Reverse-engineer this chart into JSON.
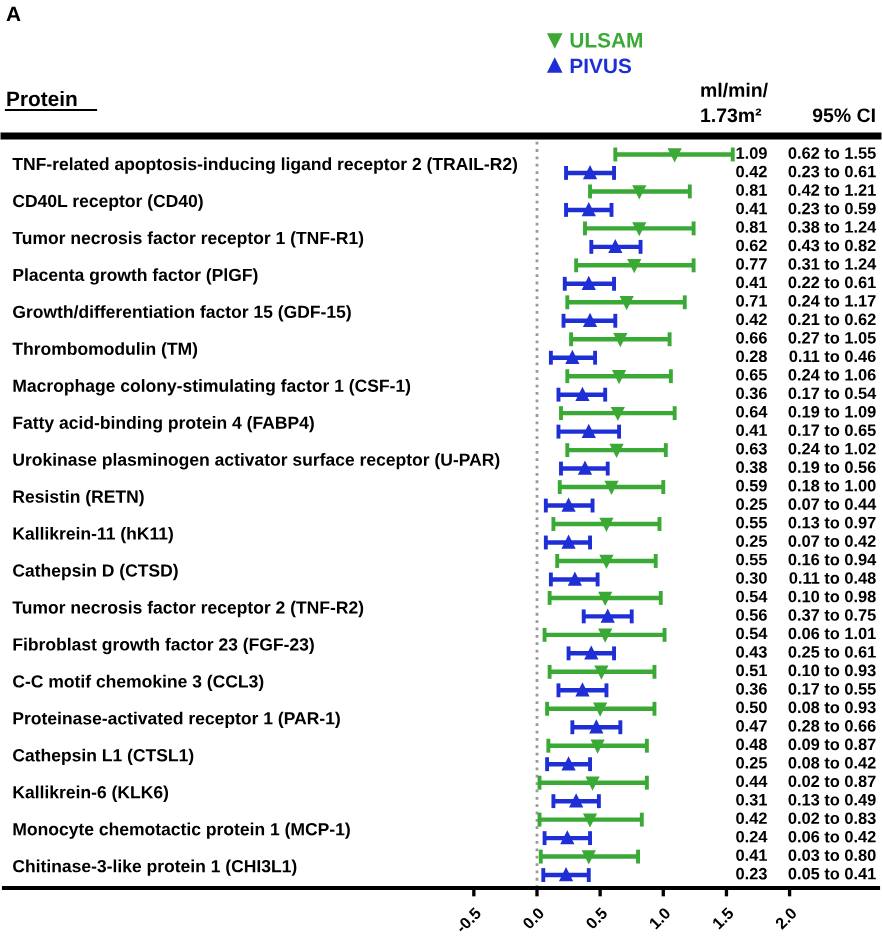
{
  "chart_data": {
    "type": "scatter",
    "orientation": "horizontal",
    "title": "A",
    "ylabel": "Protein",
    "annotations": [
      "ml/min/\n1.73m²",
      "95% CI"
    ],
    "categories": [
      "TNF-related apoptosis-inducing ligand receptor 2 (TRAIL-R2)",
      "CD40L receptor (CD40)",
      "Tumor necrosis factor receptor 1 (TNF-R1)",
      "Placenta growth factor (PlGF)",
      "Growth/differentiation factor 15 (GDF-15)",
      "Thrombomodulin (TM)",
      "Macrophage colony-stimulating factor 1 (CSF-1)",
      "Fatty acid-binding protein 4 (FABP4)",
      "Urokinase plasminogen activator surface receptor (U-PAR)",
      "Resistin (RETN)",
      "Kallikrein-11 (hK11)",
      "Cathepsin D (CTSD)",
      "Tumor necrosis factor receptor 2 (TNF-R2)",
      "Fibroblast growth factor 23 (FGF-23)",
      "C-C motif chemokine 3 (CCL3)",
      "Proteinase-activated receptor 1 (PAR-1)",
      "Cathepsin L1 (CTSL1)",
      "Kallikrein-6 (KLK6)",
      "Monocyte chemotactic protein 1 (MCP-1)",
      "Chitinase-3-like protein 1 (CHI3L1)"
    ],
    "series": [
      {
        "name": "ULSAM",
        "color": "#3aa935",
        "marker": "triangle_down",
        "values": [
          1.09,
          0.81,
          0.81,
          0.77,
          0.71,
          0.66,
          0.65,
          0.64,
          0.63,
          0.59,
          0.55,
          0.55,
          0.54,
          0.54,
          0.51,
          0.5,
          0.48,
          0.44,
          0.42,
          0.41
        ],
        "errors": [
          [
            0.62,
            1.55
          ],
          [
            0.42,
            1.21
          ],
          [
            0.38,
            1.24
          ],
          [
            0.31,
            1.24
          ],
          [
            0.24,
            1.17
          ],
          [
            0.27,
            1.05
          ],
          [
            0.24,
            1.06
          ],
          [
            0.19,
            1.09
          ],
          [
            0.24,
            1.02
          ],
          [
            0.18,
            1.0
          ],
          [
            0.13,
            0.97
          ],
          [
            0.16,
            0.94
          ],
          [
            0.1,
            0.98
          ],
          [
            0.06,
            1.01
          ],
          [
            0.1,
            0.93
          ],
          [
            0.08,
            0.93
          ],
          [
            0.09,
            0.87
          ],
          [
            0.02,
            0.87
          ],
          [
            0.02,
            0.83
          ],
          [
            0.03,
            0.8
          ]
        ],
        "value_labels": [
          "1.09 0.62 to 1.55",
          "0.81 0.42 to 1.21",
          "0.81 0.38 to 1.24",
          "0.77 0.31 to 1.24",
          "0.71 0.24 to 1.17",
          "0.66 0.27 to 1.05",
          "0.65 0.24 to 1.06",
          "0.64 0.19 to 1.09",
          "0.63 0.24 to 1.02",
          "0.59 0.18 to 1.00",
          "0.55 0.13 to 0.97",
          "0.55 0.16 to 0.94",
          "0.54 0.10 to 0.98",
          "0.54 0.06 to 1.01",
          "0.51 0.10 to 0.93",
          "0.50 0.08 to 0.93",
          "0.48 0.09 to 0.87",
          "0.44 0.02 to 0.87",
          "0.42 0.02 to 0.83",
          "0.41 0.03 to 0.80"
        ]
      },
      {
        "name": "PIVUS",
        "color": "#1f2fd6",
        "marker": "triangle",
        "values": [
          0.42,
          0.41,
          0.62,
          0.41,
          0.42,
          0.28,
          0.36,
          0.41,
          0.38,
          0.25,
          0.25,
          0.3,
          0.56,
          0.43,
          0.36,
          0.47,
          0.25,
          0.31,
          0.24,
          0.23
        ],
        "errors": [
          [
            0.23,
            0.61
          ],
          [
            0.23,
            0.59
          ],
          [
            0.43,
            0.82
          ],
          [
            0.22,
            0.61
          ],
          [
            0.21,
            0.62
          ],
          [
            0.11,
            0.46
          ],
          [
            0.17,
            0.54
          ],
          [
            0.17,
            0.65
          ],
          [
            0.19,
            0.56
          ],
          [
            0.07,
            0.44
          ],
          [
            0.07,
            0.42
          ],
          [
            0.11,
            0.48
          ],
          [
            0.37,
            0.75
          ],
          [
            0.25,
            0.61
          ],
          [
            0.17,
            0.55
          ],
          [
            0.28,
            0.66
          ],
          [
            0.08,
            0.42
          ],
          [
            0.13,
            0.49
          ],
          [
            0.06,
            0.42
          ],
          [
            0.05,
            0.41
          ]
        ],
        "value_labels": [
          "0.42 0.23 to 0.61",
          "0.41 0.23 to 0.59",
          "0.62 0.43 to 0.82",
          "0.41 0.22 to 0.61",
          "0.42 0.21 to 0.62",
          "0.28 0.11 to 0.46",
          "0.36 0.17 to 0.54",
          "0.41 0.17 to 0.65",
          "0.38 0.19 to 0.56",
          "0.25 0.07 to 0.44",
          "0.25 0.07 to 0.42",
          "0.30 0.11 to 0.48",
          "0.56 0.37 to 0.75",
          "0.43 0.25 to 0.61",
          "0.36 0.17 to 0.55",
          "0.47 0.28 to 0.66",
          "0.25 0.08 to 0.42",
          "0.31 0.13 to 0.49",
          "0.24 0.06 to 0.42",
          "0.23 0.05 to 0.41"
        ]
      }
    ],
    "xlim": [
      -4.22,
      2.7
    ],
    "xticks": [
      -0.5,
      {
        "value": 0,
        "label": "0.0"
      },
      0.5,
      {
        "value": 1,
        "label": "1.0"
      },
      1.5,
      {
        "value": 2,
        "label": "2.0"
      }
    ],
    "ref_lines": [
      {
        "axis": "x",
        "value": 0,
        "label": null,
        "color": "#999999",
        "line_style": "dotted"
      }
    ],
    "legend": "top",
    "grid": false
  }
}
